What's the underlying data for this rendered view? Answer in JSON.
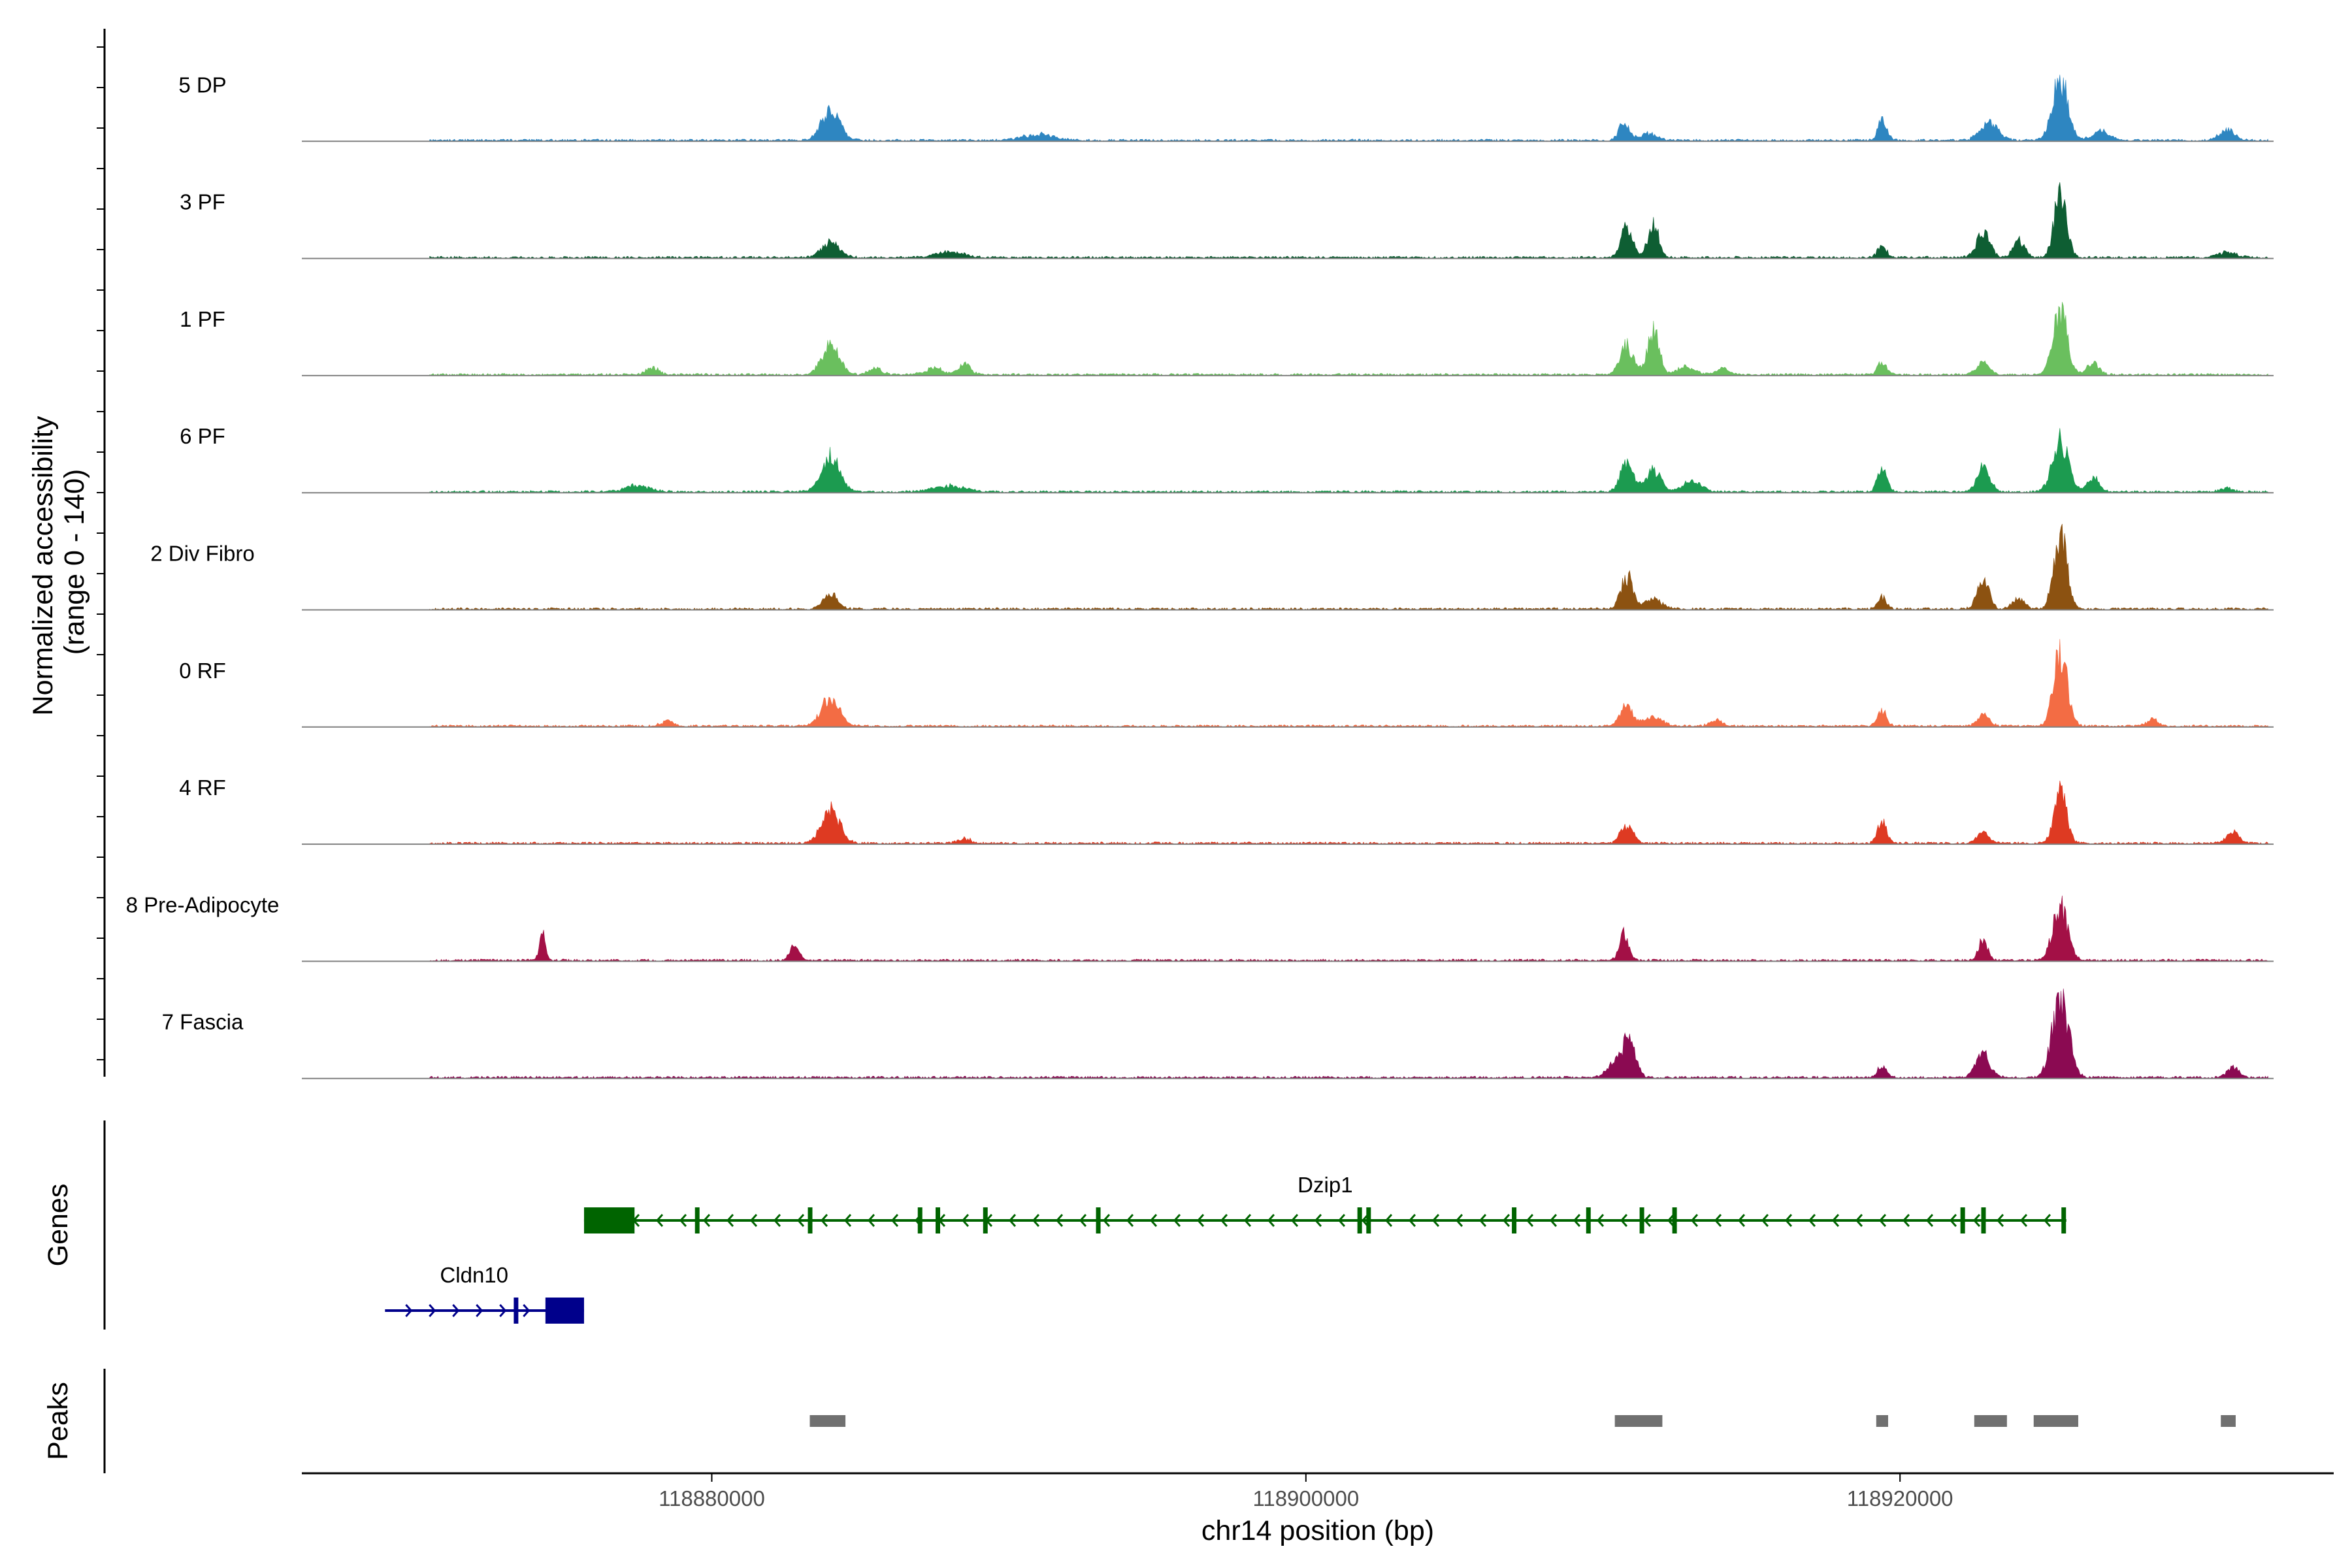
{
  "chart_data": {
    "type": "area",
    "title": "",
    "region": "chr14",
    "xlabel": "chr14 position (bp)",
    "ylabel": "Normalized accessibility\n(range 0 - 140)",
    "y_range": [
      0,
      140
    ],
    "xlim": [
      118866200,
      118934600
    ],
    "x_ticks": [
      118880000,
      118900000,
      118920000
    ],
    "x_tick_labels": [
      "118880000",
      "118900000",
      "118920000"
    ],
    "panel_labels": [
      "Genes",
      "Peaks"
    ],
    "baseline_color": "#808080",
    "tracks": [
      {
        "name": "5 DP",
        "color": "#2E86C1",
        "peaks": [
          [
            118884000,
            60,
            300
          ],
          [
            118891000,
            12,
            500
          ],
          [
            118910700,
            38,
            160
          ],
          [
            118911500,
            14,
            300
          ],
          [
            118919400,
            40,
            150
          ],
          [
            118923000,
            34,
            300
          ],
          [
            118925400,
            118,
            260
          ],
          [
            118926800,
            18,
            300
          ],
          [
            118931000,
            22,
            250
          ]
        ]
      },
      {
        "name": "3 PF",
        "color": "#0E5E33",
        "peaks": [
          [
            118884000,
            30,
            300
          ],
          [
            118888000,
            10,
            500
          ],
          [
            118910800,
            58,
            200
          ],
          [
            118911700,
            68,
            180
          ],
          [
            118919400,
            24,
            150
          ],
          [
            118922800,
            50,
            220
          ],
          [
            118924000,
            34,
            200
          ],
          [
            118925400,
            132,
            200
          ],
          [
            118931000,
            10,
            300
          ]
        ]
      },
      {
        "name": "1 PF",
        "color": "#6ABF5E",
        "peaks": [
          [
            118878000,
            14,
            200
          ],
          [
            118884000,
            56,
            300
          ],
          [
            118885500,
            14,
            200
          ],
          [
            118887500,
            12,
            300
          ],
          [
            118888500,
            22,
            200
          ],
          [
            118910800,
            58,
            220
          ],
          [
            118911700,
            84,
            200
          ],
          [
            118912800,
            16,
            300
          ],
          [
            118914000,
            12,
            200
          ],
          [
            118919400,
            26,
            150
          ],
          [
            118922800,
            28,
            200
          ],
          [
            118925400,
            120,
            240
          ],
          [
            118926500,
            22,
            200
          ]
        ]
      },
      {
        "name": "6 PF",
        "color": "#1C9B50",
        "peaks": [
          [
            118877500,
            12,
            400
          ],
          [
            118884000,
            70,
            300
          ],
          [
            118888000,
            12,
            500
          ],
          [
            118910800,
            56,
            220
          ],
          [
            118911700,
            42,
            250
          ],
          [
            118913000,
            20,
            300
          ],
          [
            118919400,
            50,
            150
          ],
          [
            118922800,
            48,
            220
          ],
          [
            118925400,
            102,
            260
          ],
          [
            118926500,
            30,
            200
          ],
          [
            118931000,
            8,
            200
          ]
        ]
      },
      {
        "name": "2 Div Fibro",
        "color": "#8C5211",
        "peaks": [
          [
            118884000,
            28,
            250
          ],
          [
            118910800,
            64,
            200
          ],
          [
            118911700,
            18,
            300
          ],
          [
            118919400,
            22,
            150
          ],
          [
            118922800,
            56,
            200
          ],
          [
            118924000,
            20,
            200
          ],
          [
            118925400,
            144,
            220
          ]
        ]
      },
      {
        "name": "0 RF",
        "color": "#F36C44",
        "peaks": [
          [
            118878500,
            10,
            200
          ],
          [
            118884000,
            56,
            300
          ],
          [
            118910800,
            44,
            200
          ],
          [
            118911700,
            18,
            300
          ],
          [
            118913800,
            12,
            200
          ],
          [
            118919400,
            30,
            150
          ],
          [
            118922800,
            22,
            200
          ],
          [
            118925400,
            140,
            240
          ],
          [
            118928500,
            12,
            200
          ]
        ]
      },
      {
        "name": "4 RF",
        "color": "#DE3A22",
        "peaks": [
          [
            118884000,
            66,
            300
          ],
          [
            118888500,
            10,
            200
          ],
          [
            118910800,
            36,
            200
          ],
          [
            118919400,
            44,
            150
          ],
          [
            118922800,
            20,
            200
          ],
          [
            118925400,
            108,
            200
          ],
          [
            118931200,
            24,
            200
          ]
        ]
      },
      {
        "name": "8 Pre-Adipocyte",
        "color": "#A31046",
        "peaks": [
          [
            118874300,
            52,
            100
          ],
          [
            118882800,
            30,
            150
          ],
          [
            118910700,
            56,
            150
          ],
          [
            118922800,
            40,
            150
          ],
          [
            118925400,
            104,
            250
          ]
        ]
      },
      {
        "name": "7 Fascia",
        "color": "#8B0A52",
        "peaks": [
          [
            118910500,
            32,
            300
          ],
          [
            118910900,
            66,
            200
          ],
          [
            118919400,
            24,
            150
          ],
          [
            118922800,
            44,
            250
          ],
          [
            118925400,
            150,
            280
          ],
          [
            118931200,
            20,
            200
          ]
        ]
      }
    ],
    "genes": [
      {
        "name": "Dzip1",
        "strand": "-",
        "color": "#006400",
        "start": 118875700,
        "end": 118925600,
        "utr": [
          [
            118875700,
            118877400
          ]
        ],
        "exons": [
          118879500,
          118883300,
          118887000,
          118887600,
          118889200,
          118893000,
          118901800,
          118902100,
          118907000,
          118909500,
          118911300,
          118912400,
          118922100,
          118922800,
          118925500
        ]
      },
      {
        "name": "Cldn10",
        "strand": "+",
        "color": "#00008B",
        "start": 118869000,
        "end": 118875700,
        "utr": [
          [
            118874400,
            118875700
          ]
        ],
        "exons": [
          118873400
        ]
      }
    ],
    "peak_regions": [
      [
        118883300,
        118884500
      ],
      [
        118910400,
        118912000
      ],
      [
        118919200,
        118919600
      ],
      [
        118922500,
        118923600
      ],
      [
        118924500,
        118926000
      ],
      [
        118930800,
        118931300
      ]
    ]
  }
}
